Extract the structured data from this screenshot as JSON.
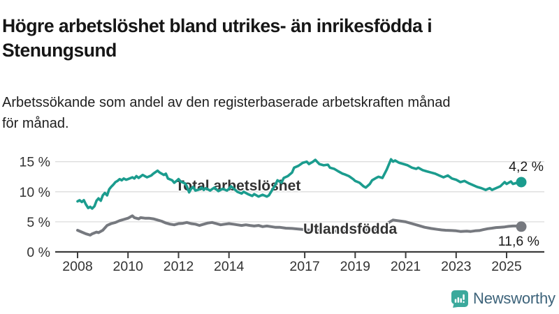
{
  "header": {
    "title_lines": [
      "Högre arbetslöshet bland utrikes- än inrikesfödda i",
      "Stenungsund"
    ],
    "subtitle_lines": [
      "Arbetssökande som andel av den registerbaserade arbetskraften månad",
      "för månad."
    ]
  },
  "footer": {
    "brand": "Newsworthy",
    "logo_icon": "newsworthy-speech-bubble-bar-chart-icon"
  },
  "colors": {
    "teal_series": "#1b9c8e",
    "gray_series": "#76797f",
    "gridline": "#dcdcdc",
    "axis_line": "#3c3c3c",
    "axis_text": "#333333",
    "annotation_text": "#1a1a1a",
    "logo_icon_teal": "#3ba99c",
    "brand_text": "#3d637a"
  },
  "chart_data": {
    "type": "line",
    "title": "Högre arbetslöshet bland utrikes- än inrikesfödda i Stenungsund",
    "subtitle": "Arbetssökande som andel av den registerbaserade arbetskraften månad för månad.",
    "unit": "%",
    "grid": true,
    "legend_position": "inline-labels-on-lines",
    "x_axis": {
      "range": [
        2007.1,
        2026.5
      ],
      "ticks": [
        2008,
        2010,
        2012,
        2014,
        2017,
        2019,
        2021,
        2023,
        2025
      ],
      "tick_labels": [
        "2008",
        "2010",
        "2012",
        "2014",
        "2017",
        "2019",
        "2021",
        "2023",
        "2025"
      ]
    },
    "y_axis": {
      "range": [
        0,
        16.5
      ],
      "ticks": [
        0,
        5,
        10,
        15
      ],
      "tick_labels": [
        "0 %",
        "5 %",
        "10 %",
        "15 %"
      ]
    },
    "series": [
      {
        "name": "Utlandsfödda",
        "color": "#1b9c8e",
        "end_value": 11.6,
        "end_label": "11,6 %",
        "points": [
          [
            2008.0,
            8.4
          ],
          [
            2008.08,
            8.6
          ],
          [
            2008.17,
            8.3
          ],
          [
            2008.25,
            8.6
          ],
          [
            2008.33,
            7.9
          ],
          [
            2008.42,
            7.3
          ],
          [
            2008.5,
            7.5
          ],
          [
            2008.58,
            7.2
          ],
          [
            2008.67,
            7.6
          ],
          [
            2008.75,
            8.5
          ],
          [
            2008.83,
            8.9
          ],
          [
            2008.92,
            8.5
          ],
          [
            2009.0,
            9.4
          ],
          [
            2009.08,
            9.8
          ],
          [
            2009.17,
            9.4
          ],
          [
            2009.25,
            10.4
          ],
          [
            2009.33,
            10.8
          ],
          [
            2009.42,
            11.2
          ],
          [
            2009.5,
            11.6
          ],
          [
            2009.58,
            11.8
          ],
          [
            2009.67,
            12.1
          ],
          [
            2009.75,
            11.9
          ],
          [
            2009.83,
            12.2
          ],
          [
            2009.92,
            12.0
          ],
          [
            2010.0,
            12.1
          ],
          [
            2010.17,
            12.4
          ],
          [
            2010.25,
            12.2
          ],
          [
            2010.33,
            12.6
          ],
          [
            2010.42,
            12.3
          ],
          [
            2010.58,
            12.8
          ],
          [
            2010.75,
            12.4
          ],
          [
            2010.92,
            12.7
          ],
          [
            2011.0,
            13.0
          ],
          [
            2011.17,
            13.5
          ],
          [
            2011.25,
            13.2
          ],
          [
            2011.42,
            12.8
          ],
          [
            2011.5,
            13.0
          ],
          [
            2011.58,
            12.2
          ],
          [
            2011.75,
            11.9
          ],
          [
            2011.83,
            11.5
          ],
          [
            2011.92,
            11.8
          ],
          [
            2012.0,
            12.1
          ],
          [
            2012.08,
            11.7
          ],
          [
            2012.25,
            11.4
          ],
          [
            2012.33,
            10.9
          ],
          [
            2012.42,
            9.9
          ],
          [
            2012.5,
            10.5
          ],
          [
            2012.58,
            10.8
          ],
          [
            2012.67,
            10.2
          ],
          [
            2012.83,
            10.4
          ],
          [
            2012.92,
            10.7
          ],
          [
            2013.0,
            10.3
          ],
          [
            2013.08,
            10.6
          ],
          [
            2013.25,
            10.2
          ],
          [
            2013.42,
            10.7
          ],
          [
            2013.58,
            10.1
          ],
          [
            2013.75,
            10.5
          ],
          [
            2013.92,
            10.2
          ],
          [
            2014.0,
            10.5
          ],
          [
            2014.08,
            10.9
          ],
          [
            2014.25,
            10.3
          ],
          [
            2014.33,
            10.0
          ],
          [
            2014.5,
            9.7
          ],
          [
            2014.58,
            10.0
          ],
          [
            2014.75,
            9.6
          ],
          [
            2014.92,
            9.3
          ],
          [
            2015.0,
            9.6
          ],
          [
            2015.17,
            9.2
          ],
          [
            2015.33,
            9.5
          ],
          [
            2015.5,
            9.2
          ],
          [
            2015.58,
            9.4
          ],
          [
            2015.67,
            10.0
          ],
          [
            2015.83,
            11.1
          ],
          [
            2015.92,
            11.9
          ],
          [
            2016.08,
            11.5
          ],
          [
            2016.17,
            12.3
          ],
          [
            2016.33,
            12.6
          ],
          [
            2016.5,
            13.2
          ],
          [
            2016.58,
            14.0
          ],
          [
            2016.75,
            14.3
          ],
          [
            2016.92,
            14.8
          ],
          [
            2017.08,
            15.0
          ],
          [
            2017.17,
            14.6
          ],
          [
            2017.33,
            15.0
          ],
          [
            2017.42,
            15.3
          ],
          [
            2017.58,
            14.6
          ],
          [
            2017.75,
            14.4
          ],
          [
            2017.92,
            14.5
          ],
          [
            2018.0,
            14.0
          ],
          [
            2018.17,
            13.8
          ],
          [
            2018.33,
            13.4
          ],
          [
            2018.5,
            13.0
          ],
          [
            2018.58,
            12.9
          ],
          [
            2018.75,
            12.6
          ],
          [
            2018.92,
            12.1
          ],
          [
            2019.0,
            11.8
          ],
          [
            2019.17,
            11.5
          ],
          [
            2019.33,
            10.9
          ],
          [
            2019.42,
            10.7
          ],
          [
            2019.58,
            11.3
          ],
          [
            2019.67,
            11.9
          ],
          [
            2019.83,
            12.3
          ],
          [
            2019.92,
            12.5
          ],
          [
            2020.08,
            12.3
          ],
          [
            2020.25,
            13.7
          ],
          [
            2020.42,
            15.4
          ],
          [
            2020.5,
            15.0
          ],
          [
            2020.58,
            15.2
          ],
          [
            2020.75,
            14.8
          ],
          [
            2020.92,
            14.6
          ],
          [
            2021.08,
            14.4
          ],
          [
            2021.25,
            14.0
          ],
          [
            2021.42,
            13.8
          ],
          [
            2021.5,
            14.0
          ],
          [
            2021.67,
            13.6
          ],
          [
            2021.83,
            13.4
          ],
          [
            2022.0,
            13.2
          ],
          [
            2022.17,
            13.0
          ],
          [
            2022.33,
            12.7
          ],
          [
            2022.5,
            12.4
          ],
          [
            2022.67,
            12.7
          ],
          [
            2022.83,
            12.2
          ],
          [
            2023.0,
            12.0
          ],
          [
            2023.17,
            11.6
          ],
          [
            2023.33,
            11.8
          ],
          [
            2023.5,
            11.4
          ],
          [
            2023.67,
            11.1
          ],
          [
            2023.83,
            10.8
          ],
          [
            2024.0,
            10.6
          ],
          [
            2024.17,
            10.3
          ],
          [
            2024.33,
            10.6
          ],
          [
            2024.42,
            10.3
          ],
          [
            2024.58,
            10.6
          ],
          [
            2024.75,
            10.9
          ],
          [
            2024.92,
            11.6
          ],
          [
            2025.0,
            11.3
          ],
          [
            2025.17,
            11.7
          ],
          [
            2025.25,
            11.3
          ],
          [
            2025.42,
            11.5
          ],
          [
            2025.58,
            11.6
          ]
        ]
      },
      {
        "name": "Total arbetslöshet",
        "color": "#76797f",
        "end_value": 4.2,
        "end_label": "4,2 %",
        "points": [
          [
            2008.0,
            3.6
          ],
          [
            2008.17,
            3.3
          ],
          [
            2008.33,
            3.0
          ],
          [
            2008.5,
            2.8
          ],
          [
            2008.58,
            3.0
          ],
          [
            2008.75,
            3.3
          ],
          [
            2008.83,
            3.2
          ],
          [
            2009.0,
            3.6
          ],
          [
            2009.17,
            4.4
          ],
          [
            2009.33,
            4.7
          ],
          [
            2009.5,
            4.9
          ],
          [
            2009.67,
            5.2
          ],
          [
            2009.83,
            5.4
          ],
          [
            2010.0,
            5.6
          ],
          [
            2010.17,
            6.0
          ],
          [
            2010.25,
            5.7
          ],
          [
            2010.42,
            5.5
          ],
          [
            2010.5,
            5.7
          ],
          [
            2010.67,
            5.6
          ],
          [
            2010.83,
            5.6
          ],
          [
            2011.0,
            5.5
          ],
          [
            2011.17,
            5.3
          ],
          [
            2011.33,
            5.1
          ],
          [
            2011.5,
            4.8
          ],
          [
            2011.67,
            4.6
          ],
          [
            2011.83,
            4.5
          ],
          [
            2012.0,
            4.7
          ],
          [
            2012.17,
            4.75
          ],
          [
            2012.33,
            4.9
          ],
          [
            2012.5,
            4.7
          ],
          [
            2012.67,
            4.6
          ],
          [
            2012.83,
            4.4
          ],
          [
            2013.0,
            4.6
          ],
          [
            2013.17,
            4.8
          ],
          [
            2013.33,
            4.9
          ],
          [
            2013.5,
            4.7
          ],
          [
            2013.67,
            4.5
          ],
          [
            2013.83,
            4.6
          ],
          [
            2014.0,
            4.7
          ],
          [
            2014.17,
            4.6
          ],
          [
            2014.33,
            4.5
          ],
          [
            2014.5,
            4.4
          ],
          [
            2014.67,
            4.5
          ],
          [
            2014.83,
            4.4
          ],
          [
            2015.0,
            4.3
          ],
          [
            2015.17,
            4.4
          ],
          [
            2015.33,
            4.2
          ],
          [
            2015.5,
            4.3
          ],
          [
            2015.67,
            4.2
          ],
          [
            2015.83,
            4.1
          ],
          [
            2016.0,
            4.1
          ],
          [
            2016.25,
            3.95
          ],
          [
            2016.5,
            3.9
          ],
          [
            2016.75,
            3.8
          ],
          [
            2017.0,
            3.7
          ],
          [
            2017.25,
            3.6
          ],
          [
            2017.5,
            3.6
          ],
          [
            2017.75,
            3.5
          ],
          [
            2018.0,
            3.5
          ],
          [
            2018.25,
            3.45
          ],
          [
            2018.5,
            3.4
          ],
          [
            2018.75,
            3.5
          ],
          [
            2019.0,
            3.5
          ],
          [
            2019.25,
            3.6
          ],
          [
            2019.5,
            3.7
          ],
          [
            2019.75,
            3.7
          ],
          [
            2020.0,
            3.8
          ],
          [
            2020.17,
            4.2
          ],
          [
            2020.33,
            4.9
          ],
          [
            2020.5,
            5.3
          ],
          [
            2020.67,
            5.2
          ],
          [
            2020.83,
            5.1
          ],
          [
            2021.0,
            5.0
          ],
          [
            2021.25,
            4.7
          ],
          [
            2021.5,
            4.4
          ],
          [
            2021.75,
            4.1
          ],
          [
            2022.0,
            3.9
          ],
          [
            2022.25,
            3.75
          ],
          [
            2022.42,
            3.65
          ],
          [
            2022.58,
            3.6
          ],
          [
            2022.83,
            3.55
          ],
          [
            2023.0,
            3.5
          ],
          [
            2023.17,
            3.4
          ],
          [
            2023.42,
            3.45
          ],
          [
            2023.58,
            3.4
          ],
          [
            2023.75,
            3.5
          ],
          [
            2023.92,
            3.55
          ],
          [
            2024.08,
            3.7
          ],
          [
            2024.25,
            3.85
          ],
          [
            2024.42,
            3.95
          ],
          [
            2024.58,
            4.05
          ],
          [
            2024.75,
            4.1
          ],
          [
            2024.92,
            4.15
          ],
          [
            2025.08,
            4.25
          ],
          [
            2025.25,
            4.3
          ],
          [
            2025.42,
            4.3
          ],
          [
            2025.58,
            4.2
          ]
        ]
      }
    ]
  }
}
